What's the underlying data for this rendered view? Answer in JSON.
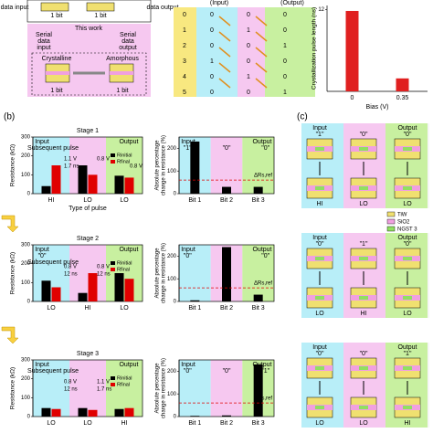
{
  "figure": {
    "panel_a": {
      "top": [
        "data input",
        "1 bit",
        "1 bit",
        "data output"
      ],
      "work": "This work",
      "serial_in": [
        "Serial",
        "data",
        "input"
      ],
      "serial_out": [
        "Serial",
        "data",
        "output"
      ],
      "states": [
        "Crystalline",
        "Amorphous"
      ],
      "bits": [
        "1 bit",
        "1 bit"
      ]
    },
    "table": {
      "headers": [
        "(Input)",
        "(Output)"
      ],
      "rows": [
        {
          "index": "0",
          "cells": [
            "0",
            "0",
            "0"
          ]
        },
        {
          "index": "1",
          "cells": [
            "0",
            "1",
            "0"
          ]
        },
        {
          "index": "2",
          "cells": [
            "0",
            "0",
            "1"
          ]
        },
        {
          "index": "3",
          "cells": [
            "1",
            "0",
            "0"
          ]
        },
        {
          "index": "4",
          "cells": [
            "0",
            "1",
            "0"
          ]
        },
        {
          "index": "5",
          "cells": [
            "0",
            "0",
            "1"
          ]
        }
      ]
    },
    "panel_b": "(b)",
    "panel_c": "(c)",
    "panel_c_blocks": [
      {
        "input": "Input",
        "input_value": "\"1\"",
        "middle_value": "\"0\"",
        "output": "Output",
        "output_value": "\"0\"",
        "states": [
          "HI",
          "LO",
          "LO"
        ]
      },
      {
        "input": "Input",
        "input_value": "\"0\"",
        "middle_value": "\"1\"",
        "output": "Output",
        "output_value": "\"0\"",
        "states": [
          "LO",
          "HI",
          "LO"
        ]
      },
      {
        "input": "Input",
        "input_value": "\"0\"",
        "middle_value": "\"0\"",
        "output": "Output",
        "output_value": "\"1\"",
        "states": [
          "LO",
          "LO",
          "HI"
        ]
      }
    ],
    "legend": [
      {
        "name": "TiW",
        "color": "#f0e070"
      },
      {
        "name": "SiO2",
        "color": "#f0a0e0"
      },
      {
        "name": "NGST 3",
        "color": "#90e060"
      }
    ]
  },
  "chart_data": [
    {
      "type": "bar",
      "ylabel": "Crystallization pulse length (ns)",
      "xlabel": "Bias (V)",
      "categories": [
        "0",
        "0.35"
      ],
      "values": [
        11.8,
        1.9
      ],
      "color": "#e02020",
      "ylim": [
        0,
        12.6
      ],
      "yticks": [
        12
      ]
    },
    {
      "type": "grouped",
      "title": "Stage 1",
      "ylabel": "Resistance (kΩ)",
      "xlabel": "Type of pulse",
      "categories": [
        "HI",
        "LO",
        "LO"
      ],
      "band_colors": [
        "#b8eef8",
        "#f6c8f0",
        "#c8f0a0"
      ],
      "series": [
        {
          "name": "Rinitial",
          "color": "#000000",
          "values": [
            40,
            150,
            95
          ]
        },
        {
          "name": "Rfinal",
          "color": "#e00000",
          "values": [
            150,
            100,
            85
          ]
        }
      ],
      "ylim": [
        0,
        300
      ],
      "yticks": [
        0,
        100,
        200,
        300
      ],
      "input": "Input",
      "output": "Output",
      "pulse": "Subsequent pulse",
      "pulses": [
        [
          "1.1 V",
          "1.7 ns"
        ],
        [
          "0.8 V"
        ],
        [
          "0.8 V"
        ]
      ]
    },
    {
      "type": "change",
      "ylabel": [
        "Absolute percentage",
        "change in resistance (%)"
      ],
      "categories": [
        "Bit 1",
        "Bit 2",
        "Bit 3"
      ],
      "values": [
        230,
        30,
        30
      ],
      "color": "#000000",
      "band_colors": [
        "#b8eef8",
        "#f6c8f0",
        "#c8f0a0"
      ],
      "ylim": [
        0,
        250
      ],
      "yticks": [
        0,
        100,
        200
      ],
      "ref": {
        "label": "ΔRs,ref",
        "value": 60,
        "color": "#e00000"
      },
      "bit_labels": [
        "\"1\"",
        "\"0\"",
        "\"0\""
      ],
      "input": "Input",
      "output": "Output"
    },
    {
      "type": "grouped",
      "title": "Stage 2",
      "ylabel": "Resistance (kΩ)",
      "categories": [
        "LO",
        "HI",
        "LO"
      ],
      "band_colors": [
        "#b8eef8",
        "#f6c8f0",
        "#c8f0a0"
      ],
      "series": [
        {
          "name": "Rinitial",
          "color": "#000000",
          "values": [
            110,
            45,
            150
          ]
        },
        {
          "name": "Rfinal",
          "color": "#e00000",
          "values": [
            75,
            150,
            120
          ]
        }
      ],
      "ylim": [
        0,
        300
      ],
      "yticks": [
        0,
        100,
        200,
        300
      ],
      "input": "Input",
      "input_value": "\"0\"",
      "output": "Output",
      "pulse": "Subsequent pulse",
      "pulses": [
        [
          "0.8 V",
          "12 ns"
        ],
        [
          "0.8 V",
          "12 ns"
        ]
      ]
    },
    {
      "type": "change",
      "ylabel": [
        "Absolute percentage",
        "change in resistance (%)"
      ],
      "categories": [
        "Bit 1",
        "Bit 2",
        "Bit 3"
      ],
      "values": [
        5,
        240,
        30
      ],
      "color": "#000000",
      "band_colors": [
        "#b8eef8",
        "#f6c8f0",
        "#c8f0a0"
      ],
      "ylim": [
        0,
        250
      ],
      "yticks": [
        0,
        100,
        200
      ],
      "ref": {
        "label": "ΔRs,ref",
        "value": 60,
        "color": "#e00000"
      },
      "bit_labels": [
        "\"0\"",
        "\"1\"",
        "\"0\""
      ],
      "input": "Input",
      "output": "Output"
    },
    {
      "type": "grouped",
      "title": "Stage 3",
      "ylabel": "Resistance (kΩ)",
      "categories": [
        "LO",
        "LO",
        "HI"
      ],
      "band_colors": [
        "#b8eef8",
        "#f6c8f0",
        "#c8f0a0"
      ],
      "series": [
        {
          "name": "Rinitial",
          "color": "#000000",
          "values": [
            45,
            45,
            40
          ]
        },
        {
          "name": "Rfinal",
          "color": "#e00000",
          "values": [
            40,
            35,
            45
          ]
        }
      ],
      "ylim": [
        0,
        300
      ],
      "yticks": [
        0,
        100,
        200,
        300
      ],
      "input": "Input",
      "output": "Output",
      "pulse": "Subsequent pulse",
      "pulses": [
        [
          "0.8 V",
          "12 ns"
        ],
        [
          "1.1 V",
          "1.7 ns"
        ]
      ]
    },
    {
      "type": "change",
      "ylabel": [
        "Absolute percentage",
        "change in resistance (%)"
      ],
      "categories": [
        "Bit 1",
        "Bit 2",
        "Bit 3"
      ],
      "values": [
        3,
        5,
        230
      ],
      "color": "#000000",
      "band_colors": [
        "#b8eef8",
        "#f6c8f0",
        "#c8f0a0"
      ],
      "ylim": [
        0,
        250
      ],
      "yticks": [
        0,
        100,
        200
      ],
      "ref": {
        "label": "ΔRs,ref",
        "value": 60,
        "color": "#e00000"
      },
      "bit_labels": [
        "\"0\"",
        "\"0\"",
        "\"1\""
      ],
      "input": "Input",
      "output": "Output"
    }
  ]
}
